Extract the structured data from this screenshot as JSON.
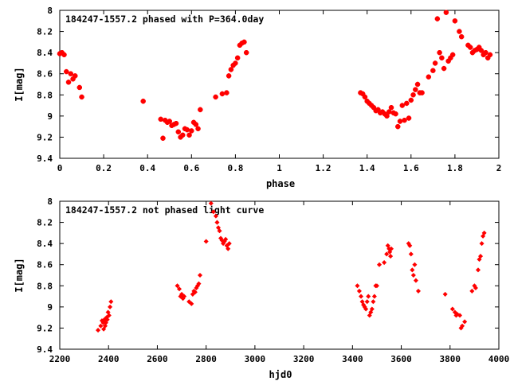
{
  "colors": {
    "points": "#ff0000",
    "axes": "#000000",
    "background": "#ffffff"
  },
  "chart_data": [
    {
      "type": "scatter",
      "title": "184247-1557.2 phased with P=364.0day",
      "xlabel": "phase",
      "ylabel": "I[mag]",
      "xlim": [
        0,
        2
      ],
      "ylim": [
        9.4,
        8
      ],
      "y_inverted": true,
      "grid": false,
      "marker": "plus",
      "xticks": [
        0,
        0.2,
        0.4,
        0.6,
        0.8,
        1,
        1.2,
        1.4,
        1.6,
        1.8,
        2
      ],
      "xtick_labels": [
        "0",
        "0.2",
        "0.4",
        "0.6",
        "0.8",
        "1",
        "1.2",
        "1.4",
        "1.6",
        "1.8",
        "2"
      ],
      "yticks": [
        8,
        8.2,
        8.4,
        8.6,
        8.8,
        9,
        9.2,
        9.4
      ],
      "ytick_labels": [
        "8",
        "8.2",
        "8.4",
        "8.6",
        "8.8",
        "9",
        "9.2",
        "9.4"
      ],
      "series": [
        {
          "x": [
            0.0,
            0.01,
            0.02,
            0.03,
            0.04,
            0.05,
            0.06,
            0.07,
            0.09,
            0.1,
            0.38,
            0.46,
            0.47,
            0.48,
            0.49,
            0.5,
            0.51,
            0.52,
            0.53,
            0.54,
            0.55,
            0.56,
            0.57,
            0.58,
            0.59,
            0.6,
            0.61,
            0.62,
            0.63,
            0.64,
            0.71,
            0.74,
            0.76,
            0.77,
            0.78,
            0.79,
            0.8,
            0.81,
            0.82,
            0.83,
            0.84,
            0.85,
            1.37,
            1.38,
            1.39,
            1.4,
            1.41,
            1.42,
            1.43,
            1.44,
            1.45,
            1.46,
            1.47,
            1.48,
            1.49,
            1.5,
            1.51,
            1.52,
            1.53,
            1.54,
            1.55,
            1.56,
            1.57,
            1.58,
            1.59,
            1.6,
            1.61,
            1.62,
            1.63,
            1.64,
            1.65,
            1.68,
            1.7,
            1.71,
            1.72,
            1.73,
            1.74,
            1.75,
            1.76,
            1.77,
            1.78,
            1.79,
            1.8,
            1.82,
            1.83,
            1.86,
            1.87,
            1.88,
            1.89,
            1.9,
            1.91,
            1.92,
            1.93,
            1.94,
            1.95,
            1.96
          ],
          "y": [
            8.41,
            8.4,
            8.42,
            8.58,
            8.68,
            8.6,
            8.65,
            8.62,
            8.73,
            8.82,
            8.86,
            9.03,
            9.21,
            9.04,
            9.06,
            9.05,
            9.09,
            9.08,
            9.07,
            9.15,
            9.2,
            9.18,
            9.12,
            9.13,
            9.18,
            9.14,
            9.06,
            9.08,
            9.12,
            8.94,
            8.82,
            8.79,
            8.78,
            8.62,
            8.56,
            8.52,
            8.5,
            8.45,
            8.33,
            8.31,
            8.3,
            8.4,
            8.78,
            8.79,
            8.82,
            8.86,
            8.88,
            8.9,
            8.92,
            8.95,
            8.94,
            8.97,
            8.96,
            8.98,
            9.0,
            8.96,
            8.92,
            8.97,
            8.98,
            9.1,
            9.05,
            8.9,
            9.04,
            8.88,
            9.02,
            8.85,
            8.8,
            8.75,
            8.7,
            8.78,
            8.78,
            8.63,
            8.57,
            8.5,
            8.08,
            8.4,
            8.45,
            8.55,
            8.02,
            8.48,
            8.45,
            8.42,
            8.1,
            8.2,
            8.25,
            8.33,
            8.35,
            8.4,
            8.38,
            8.37,
            8.35,
            8.38,
            8.42,
            8.4,
            8.45,
            8.42
          ]
        }
      ]
    },
    {
      "type": "scatter",
      "title": "184247-1557.2 not phased light curve",
      "xlabel": "hjd0",
      "ylabel": "I[mag]",
      "xlim": [
        2200,
        4000
      ],
      "ylim": [
        9.4,
        8
      ],
      "y_inverted": true,
      "grid": false,
      "marker": "diamond",
      "xticks": [
        2200,
        2400,
        2600,
        2800,
        3000,
        3200,
        3400,
        3600,
        3800,
        4000
      ],
      "xtick_labels": [
        "2200",
        "2400",
        "2600",
        "2800",
        "3000",
        "3200",
        "3400",
        "3600",
        "3800",
        "4000"
      ],
      "yticks": [
        8,
        8.2,
        8.4,
        8.6,
        8.8,
        9,
        9.2,
        9.4
      ],
      "ytick_labels": [
        "8",
        "8.2",
        "8.4",
        "8.6",
        "8.8",
        "9",
        "9.2",
        "9.4"
      ],
      "series": [
        {
          "x": [
            2357,
            2368,
            2373,
            2378,
            2380,
            2383,
            2386,
            2389,
            2392,
            2395,
            2398,
            2402,
            2406,
            2410,
            2682,
            2690,
            2695,
            2700,
            2705,
            2710,
            2730,
            2740,
            2745,
            2750,
            2755,
            2760,
            2765,
            2770,
            2775,
            2800,
            2820,
            2830,
            2840,
            2845,
            2850,
            2855,
            2860,
            2865,
            2870,
            2875,
            2880,
            2885,
            2890,
            2895,
            3420,
            3428,
            3435,
            3440,
            3445,
            3450,
            3455,
            3460,
            3465,
            3470,
            3475,
            3480,
            3485,
            3490,
            3495,
            3500,
            3510,
            3530,
            3540,
            3545,
            3550,
            3553,
            3556,
            3559,
            3630,
            3635,
            3640,
            3645,
            3650,
            3655,
            3660,
            3670,
            3780,
            3810,
            3820,
            3825,
            3830,
            3840,
            3845,
            3850,
            3860,
            3890,
            3900,
            3905,
            3915,
            3920,
            3925,
            3930,
            3935,
            3940
          ],
          "y": [
            9.22,
            9.18,
            9.13,
            9.15,
            9.21,
            9.12,
            9.18,
            9.15,
            9.1,
            9.12,
            9.05,
            9.08,
            9.0,
            8.95,
            8.8,
            8.83,
            8.9,
            8.88,
            8.92,
            8.9,
            8.95,
            8.97,
            8.88,
            8.85,
            8.86,
            8.82,
            8.8,
            8.78,
            8.7,
            8.38,
            8.02,
            8.1,
            8.14,
            8.2,
            8.25,
            8.28,
            8.35,
            8.37,
            8.4,
            8.38,
            8.36,
            8.42,
            8.45,
            8.4,
            8.8,
            8.85,
            8.9,
            8.95,
            8.98,
            9.0,
            9.02,
            8.95,
            8.9,
            9.08,
            9.05,
            9.02,
            8.95,
            8.9,
            8.8,
            8.8,
            8.6,
            8.58,
            8.5,
            8.42,
            8.45,
            8.48,
            8.52,
            8.45,
            8.4,
            8.42,
            8.5,
            8.65,
            8.7,
            8.6,
            8.75,
            8.85,
            8.88,
            9.02,
            9.05,
            9.08,
            9.07,
            9.08,
            9.2,
            9.18,
            9.14,
            8.85,
            8.8,
            8.82,
            8.65,
            8.55,
            8.52,
            8.4,
            8.33,
            8.3
          ]
        }
      ]
    }
  ]
}
